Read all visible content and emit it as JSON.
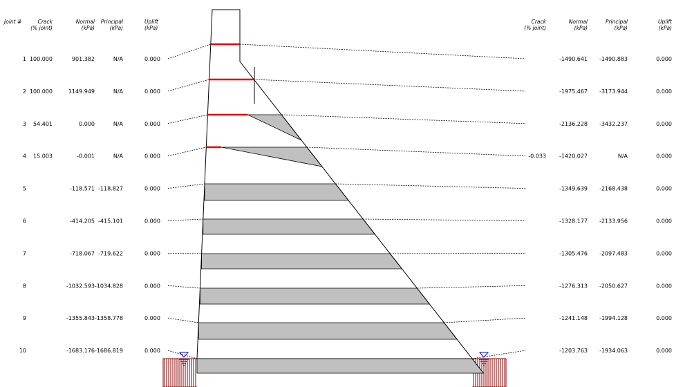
{
  "left_headers": {
    "joint": "Joint #",
    "crack_1": "Crack",
    "crack_2": "(% joint)",
    "normal_1": "Normal",
    "normal_2": "(kPa)",
    "principal_1": "Principal",
    "principal_2": "(kPa)",
    "uplift_1": "Uplift",
    "uplift_2": "(kPa)"
  },
  "right_headers": {
    "crack_1": "Crack",
    "crack_2": "(% joint)",
    "normal_1": "Normal",
    "normal_2": "(kPa)",
    "principal_1": "Principal",
    "principal_2": "(kPa)",
    "uplift_1": "Uplift",
    "uplift_2": "(kPa)"
  },
  "joints": [
    {
      "joint": "1",
      "crack_up": "100.000",
      "normal_up": "901.382",
      "principal_up": "N/A",
      "uplift_up": "0.000",
      "crack_dn": "",
      "normal_dn": "-1490.641",
      "principal_dn": "-1490.883",
      "uplift_dn": "0.000",
      "crack_fraction": 1.0
    },
    {
      "joint": "2",
      "crack_up": "100.000",
      "normal_up": "1149.949",
      "principal_up": "N/A",
      "uplift_up": "0.000",
      "crack_dn": "",
      "normal_dn": "-1975.467",
      "principal_dn": "-3173.944",
      "uplift_dn": "0.000",
      "crack_fraction": 1.0
    },
    {
      "joint": "3",
      "crack_up": "54.401",
      "normal_up": "0.000",
      "principal_up": "N/A",
      "uplift_up": "0.000",
      "crack_dn": "",
      "normal_dn": "-2136.228",
      "principal_dn": "-3432.237",
      "uplift_dn": "0.000",
      "crack_fraction": 0.544
    },
    {
      "joint": "4",
      "crack_up": "15.003",
      "normal_up": "-0.001",
      "principal_up": "N/A",
      "uplift_up": "0.000",
      "crack_dn": "-0.033",
      "normal_dn": "-1420.027",
      "principal_dn": "N/A",
      "uplift_dn": "0.000",
      "crack_fraction": 0.15
    },
    {
      "joint": "5",
      "crack_up": "",
      "normal_up": "-118.571",
      "principal_up": "-118.827",
      "uplift_up": "0.000",
      "crack_dn": "",
      "normal_dn": "-1349.639",
      "principal_dn": "-2168.438",
      "uplift_dn": "0.000",
      "crack_fraction": 0
    },
    {
      "joint": "6",
      "crack_up": "",
      "normal_up": "-414.205",
      "principal_up": "-415.101",
      "uplift_up": "0.000",
      "crack_dn": "",
      "normal_dn": "-1328.177",
      "principal_dn": "-2133.956",
      "uplift_dn": "0.000",
      "crack_fraction": 0
    },
    {
      "joint": "7",
      "crack_up": "",
      "normal_up": "-718.067",
      "principal_up": "-719.622",
      "uplift_up": "0.000",
      "crack_dn": "",
      "normal_dn": "-1305.476",
      "principal_dn": "-2097.483",
      "uplift_dn": "0.000",
      "crack_fraction": 0
    },
    {
      "joint": "8",
      "crack_up": "",
      "normal_up": "-1032.593",
      "principal_up": "-1034.828",
      "uplift_up": "0.000",
      "crack_dn": "",
      "normal_dn": "-1276.313",
      "principal_dn": "-2050.627",
      "uplift_dn": "0.000",
      "crack_fraction": 0
    },
    {
      "joint": "9",
      "crack_up": "",
      "normal_up": "-1355.843",
      "principal_up": "-1358.778",
      "uplift_up": "0.000",
      "crack_dn": "",
      "normal_dn": "-1241.148",
      "principal_dn": "-1994.128",
      "uplift_dn": "0.000",
      "crack_fraction": 0
    },
    {
      "joint": "10",
      "crack_up": "",
      "normal_up": "-1683.176",
      "principal_up": "-1686.819",
      "uplift_up": "0.000",
      "crack_dn": "",
      "normal_dn": "-1203.763",
      "principal_dn": "-1934.063",
      "uplift_dn": "0.000",
      "crack_fraction": 0
    }
  ],
  "colors": {
    "crack": "#e00000",
    "stress_fill": "#c0c0c0",
    "foundation_hatch": "#8b0000",
    "water_symbol": "#0000cc",
    "outline": "#000000"
  },
  "icons": {
    "water_level_left": "water-level-icon",
    "water_level_right": "water-level-icon"
  }
}
